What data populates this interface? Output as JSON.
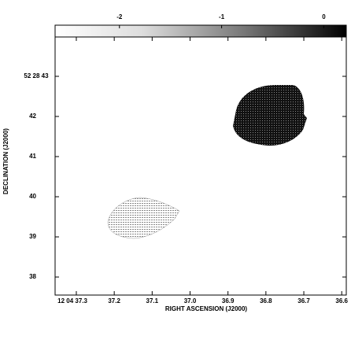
{
  "chart_data": {
    "type": "image",
    "x_label": "RIGHT ASCENSION (J2000)",
    "y_label": "DECLINATION (J2000)",
    "xlim": [
      37.356,
      36.588
    ],
    "ylim": [
      37.55,
      43.98
    ],
    "xticks": [
      {
        "value": 37.3,
        "label": "12 04 37.3"
      },
      37.2,
      37.1,
      {
        "value": 37,
        "label": "37.0"
      },
      36.9,
      36.8,
      36.7,
      36.6
    ],
    "yticks": [
      {
        "value": 43,
        "label": "52 28 43"
      },
      42,
      41,
      40,
      39,
      38
    ],
    "colorbar": {
      "clim": [
        -2.63,
        0.22
      ],
      "ticks": [
        -2,
        -1,
        0
      ]
    }
  }
}
